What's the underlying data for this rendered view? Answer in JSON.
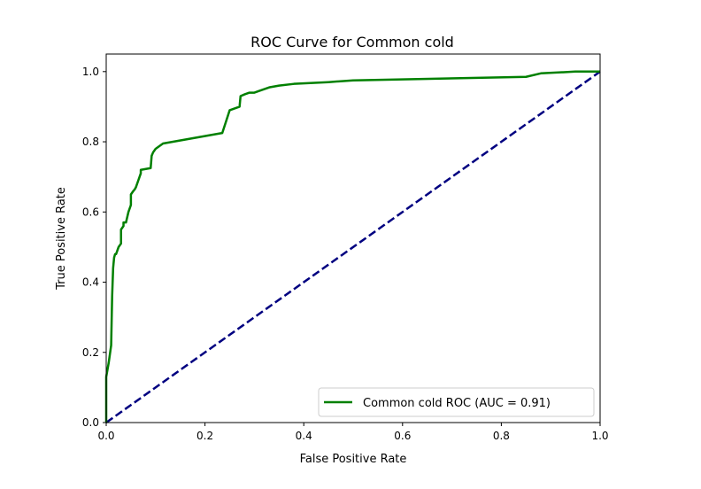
{
  "chart_data": {
    "type": "line",
    "title": "ROC Curve for Common cold",
    "xlabel": "False Positive Rate",
    "ylabel": "True Positive Rate",
    "xlim": [
      0.0,
      1.0
    ],
    "ylim": [
      0.0,
      1.05
    ],
    "xticks": [
      0.0,
      0.2,
      0.4,
      0.6,
      0.8,
      1.0
    ],
    "xtick_labels": [
      "0.0",
      "0.2",
      "0.4",
      "0.6",
      "0.8",
      "1.0"
    ],
    "yticks": [
      0.0,
      0.2,
      0.4,
      0.6,
      0.8,
      1.0
    ],
    "ytick_labels": [
      "0.0",
      "0.2",
      "0.4",
      "0.6",
      "0.8",
      "1.0"
    ],
    "grid": false,
    "legend_position": "lower-right",
    "series": [
      {
        "name": "Common cold ROC (AUC = 0.91)",
        "color": "#008000",
        "style": "solid",
        "x": [
          0.0,
          0.0,
          0.005,
          0.01,
          0.012,
          0.014,
          0.016,
          0.018,
          0.02,
          0.025,
          0.03,
          0.03,
          0.035,
          0.035,
          0.04,
          0.045,
          0.045,
          0.05,
          0.05,
          0.055,
          0.058,
          0.06,
          0.065,
          0.07,
          0.07,
          0.09,
          0.092,
          0.095,
          0.1,
          0.105,
          0.11,
          0.115,
          0.235,
          0.25,
          0.27,
          0.272,
          0.28,
          0.29,
          0.3,
          0.31,
          0.33,
          0.35,
          0.38,
          0.45,
          0.5,
          0.85,
          0.88,
          0.95,
          1.0
        ],
        "y": [
          0.0,
          0.13,
          0.17,
          0.22,
          0.36,
          0.44,
          0.47,
          0.48,
          0.48,
          0.5,
          0.51,
          0.55,
          0.56,
          0.57,
          0.57,
          0.6,
          0.6,
          0.62,
          0.65,
          0.66,
          0.665,
          0.67,
          0.69,
          0.71,
          0.72,
          0.725,
          0.76,
          0.77,
          0.78,
          0.785,
          0.79,
          0.795,
          0.825,
          0.89,
          0.9,
          0.93,
          0.935,
          0.94,
          0.94,
          0.945,
          0.955,
          0.96,
          0.965,
          0.97,
          0.975,
          0.985,
          0.995,
          1.0,
          1.0
        ]
      },
      {
        "name": "",
        "color": "#000080",
        "style": "dashed",
        "x": [
          0.0,
          1.0
        ],
        "y": [
          0.0,
          1.0
        ]
      }
    ]
  }
}
